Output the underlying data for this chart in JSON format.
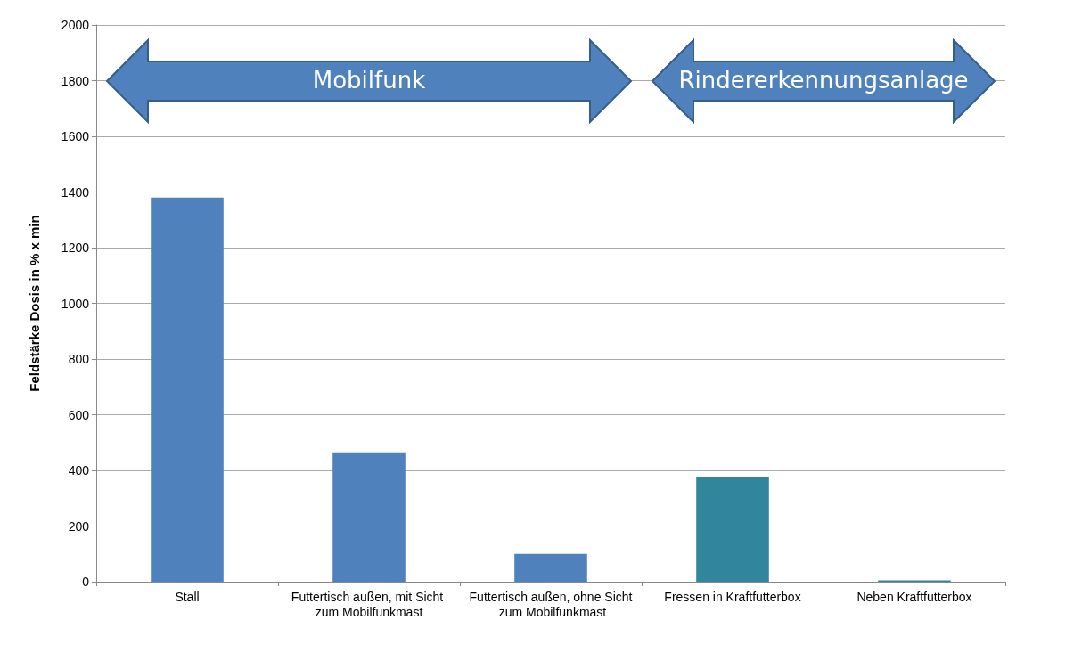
{
  "chart_data": {
    "type": "bar",
    "ylabel": "Feldstärke Dosis in % x min",
    "categories": [
      "Stall",
      "Futtertisch außen, mit Sicht zum Mobilfunkmast",
      "Futtertisch außen, ohne Sicht zum Mobilfunkmast",
      "Fressen in Kraftfutterbox",
      "Neben Kraftfutterbox"
    ],
    "values": [
      1380,
      465,
      100,
      375,
      5
    ],
    "colors": [
      "#4f81bd",
      "#4f81bd",
      "#4f81bd",
      "#31859c",
      "#31859c"
    ],
    "ylim": [
      0,
      2000
    ],
    "yticks": [
      0,
      200,
      400,
      600,
      800,
      1000,
      1200,
      1400,
      1600,
      1800,
      2000
    ],
    "grid": "y",
    "annotations": [
      "Mobilfunk",
      "Rindererkennungsanlage"
    ]
  }
}
